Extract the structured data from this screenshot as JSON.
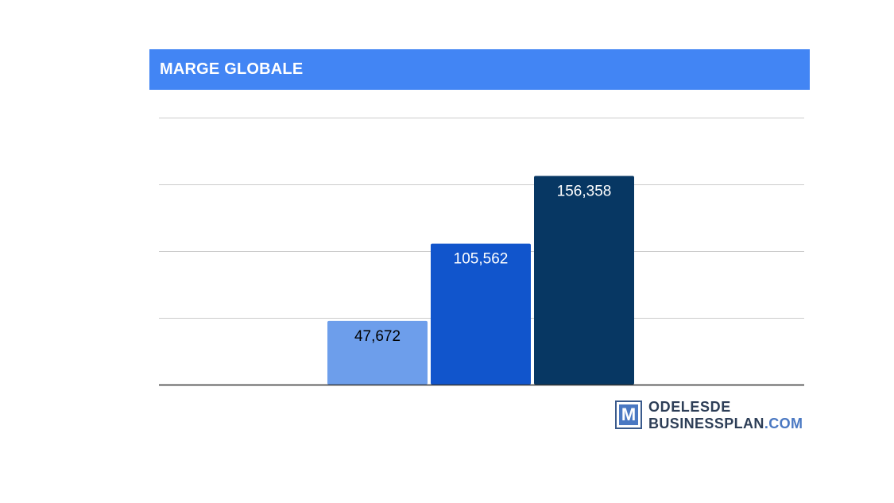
{
  "chart_data": {
    "type": "bar",
    "title": "MARGE GLOBALE",
    "categories": [
      "",
      "",
      ""
    ],
    "values": [
      47672,
      105562,
      156358
    ],
    "value_labels": [
      "47,672",
      "105,562",
      "156,358"
    ],
    "bar_colors": [
      "#6d9eeb",
      "#1155cc",
      "#073763"
    ],
    "label_colors": [
      "#000000",
      "#ffffff",
      "#ffffff"
    ],
    "ylim": [
      0,
      200000
    ],
    "gridlines": [
      0,
      50000,
      100000,
      150000,
      200000
    ],
    "grid": true,
    "legend": "none"
  },
  "colors": {
    "title_bar": "#4285f4",
    "gridline": "#cccccc",
    "baseline": "#333333"
  },
  "logo": {
    "letter": "M",
    "line1": "ODELESDE",
    "line2_main": "BUSINESSPLAN",
    "line2_suffix": ".COM"
  }
}
